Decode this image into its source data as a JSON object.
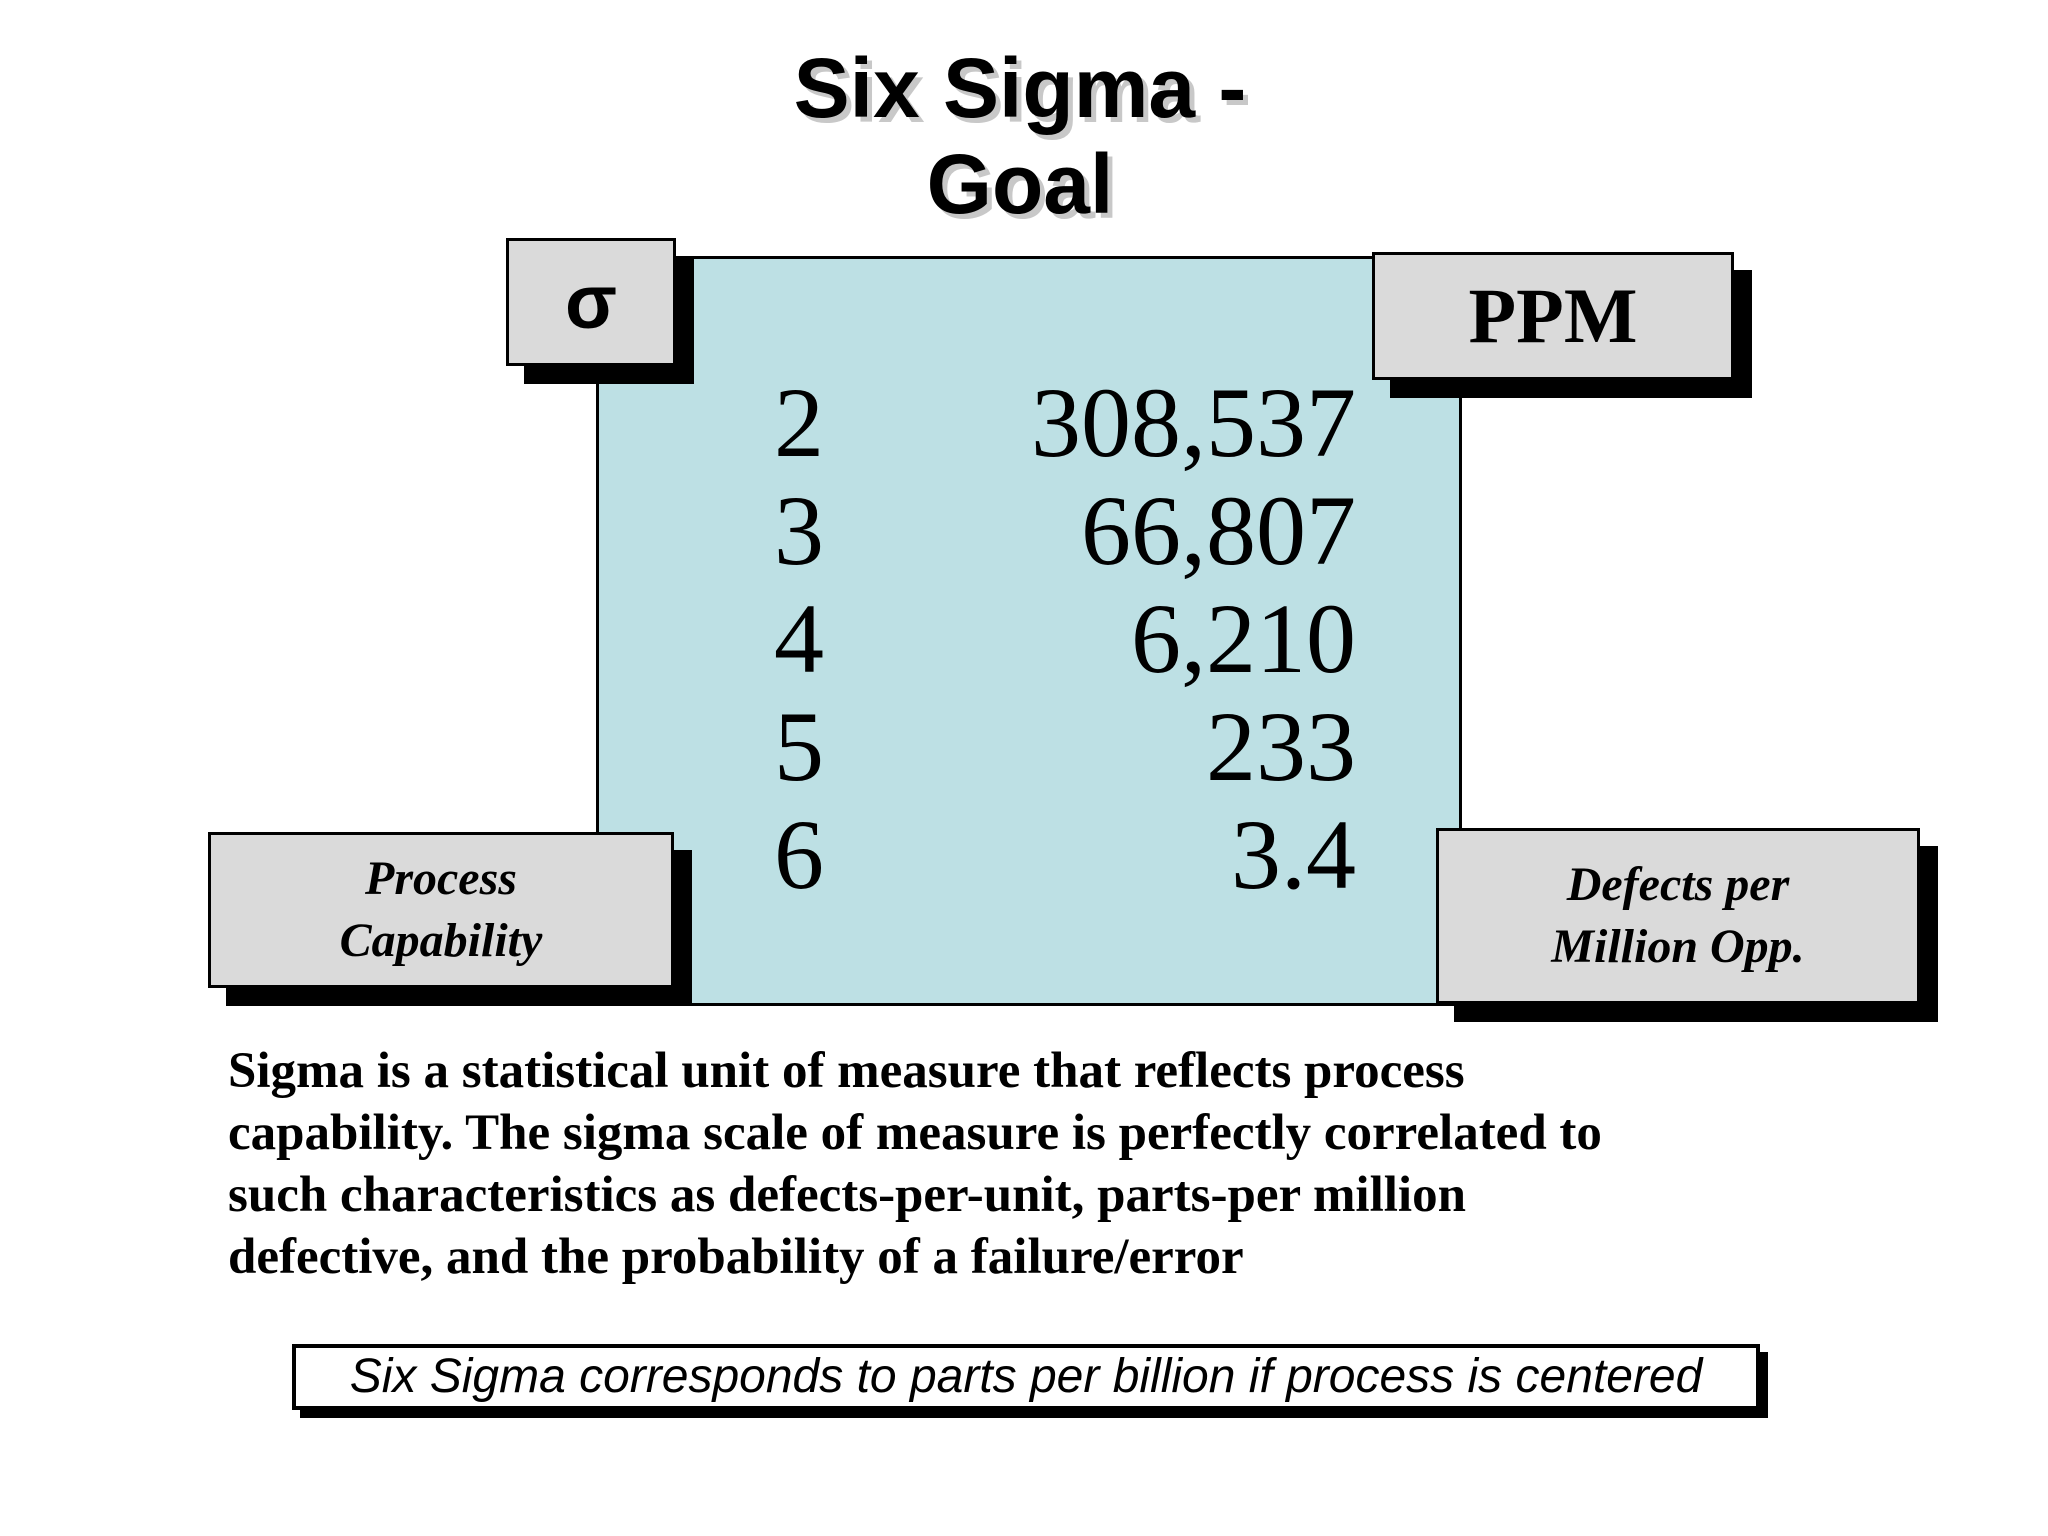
{
  "title": {
    "line1": "Six Sigma -",
    "line2": "Goal"
  },
  "table": {
    "sigma_header": "σ",
    "ppm_header": "PPM",
    "rows": [
      {
        "sigma": "2",
        "ppm": "308,537"
      },
      {
        "sigma": "3",
        "ppm": "66,807"
      },
      {
        "sigma": "4",
        "ppm": "6,210"
      },
      {
        "sigma": "5",
        "ppm": "233"
      },
      {
        "sigma": "6",
        "ppm": "3.4"
      }
    ]
  },
  "labels": {
    "process_capability": [
      "Process",
      "Capability"
    ],
    "defects_per_million": [
      "Defects per",
      "Million Opp."
    ]
  },
  "description": [
    "Sigma is a statistical unit of measure that reflects process",
    "capability.  The sigma scale of measure is perfectly correlated to",
    "such characteristics as defects-per-unit, parts-per million",
    "defective, and the probability of a failure/error"
  ],
  "note": "Six Sigma corresponds to parts per billion if process is centered"
}
